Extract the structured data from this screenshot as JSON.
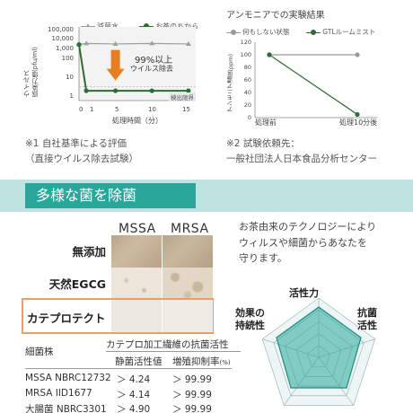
{
  "virus_chart": {
    "legend": [
      "減菌水",
      "お茶のちから"
    ],
    "y_ticks": [
      "100,000",
      "10,000",
      "1,000",
      "100",
      "10",
      "1"
    ],
    "ylabel_1": "ウイルス",
    "ylabel_2": "感染力価(pfu/ml)",
    "x_ticks": [
      "0",
      "1",
      "5",
      "10",
      "15"
    ],
    "xlabel": "処理時間（分）",
    "callout_big": "99%以上",
    "callout_small": "ウイルス除去",
    "limit_label": "検出限界",
    "colors": {
      "water": "#9aa09a",
      "tea": "#2f6b35",
      "arrow": "#e67e22"
    }
  },
  "chart_data": [
    {
      "type": "line",
      "x": [
        0,
        1,
        5,
        10,
        15
      ],
      "ylim": [
        1,
        100000
      ],
      "log_scale": true,
      "series": [
        {
          "name": "減菌水",
          "values": [
            10000,
            12000,
            11000,
            12000,
            11000
          ]
        },
        {
          "name": "お茶のちから",
          "values": [
            10000,
            5,
            5,
            5,
            5
          ]
        }
      ],
      "xlabel": "処理時間（分）",
      "ylabel": "ウイルス 感染力価(pfu/ml)"
    },
    {
      "type": "line",
      "categories": [
        "処理前",
        "処理10分後"
      ],
      "ylim": [
        0,
        120
      ],
      "series": [
        {
          "name": "何もしない状態",
          "values": [
            100,
            100
          ]
        },
        {
          "name": "GTLルームミスト",
          "values": [
            100,
            5
          ]
        }
      ],
      "ylabel": "アンモニア濃度(ppm)"
    }
  ],
  "ammonia_chart": {
    "title": "アンモニアでの実験結果",
    "legend": [
      "何もしない状態",
      "GTLルームミスト"
    ],
    "y_ticks": [
      "120",
      "100",
      "80",
      "60",
      "40",
      "20",
      "0"
    ],
    "ylabel": "アンモニア濃度(ppm)",
    "x_ticks": [
      "処理前",
      "処理10分後"
    ]
  },
  "notes": {
    "note1_line1": "※1 自社基準による評価",
    "note1_line2": "（直接ウイルス除去試験）",
    "note2_line1": "※2 試験依頼先：",
    "note2_line2": "一般社団法人日本食品分析センター"
  },
  "section": {
    "title": "多様な菌を除菌",
    "cols": [
      "MSSA",
      "MRSA"
    ],
    "rows": [
      "無添加",
      "天然EGCG",
      "カテプロテクト"
    ]
  },
  "description": {
    "line1": "お茶由来のテクノロジーにより",
    "line2": "ウィルスや細菌からあなたを",
    "line3": "守ります。"
  },
  "table": {
    "col1_header": "細菌株",
    "group_header": "カテプロ加工繊維の抗菌活性",
    "sub1": "静菌活性値",
    "sub2": "増殖抑制率",
    "sub2_unit": "(%)",
    "rows": [
      {
        "strain": "MSSA NBRC12732",
        "v1": "＞ 4.24",
        "v2": "＞ 99.99"
      },
      {
        "strain": "MRSA IID1677",
        "v1": "＞ 4.14",
        "v2": "＞ 99.99"
      },
      {
        "strain": "大腸菌 NBRC3301",
        "v1": "＞ 4.90",
        "v2": "＞ 99.99"
      }
    ]
  },
  "radar": {
    "labels": [
      "活性力",
      "抗菌活性",
      "効果の持続性"
    ],
    "label_antibac_1": "抗菌",
    "label_antibac_2": "活性",
    "label_durability_1": "効果の",
    "label_durability_2": "持続性",
    "accent": "#2aa79b"
  }
}
